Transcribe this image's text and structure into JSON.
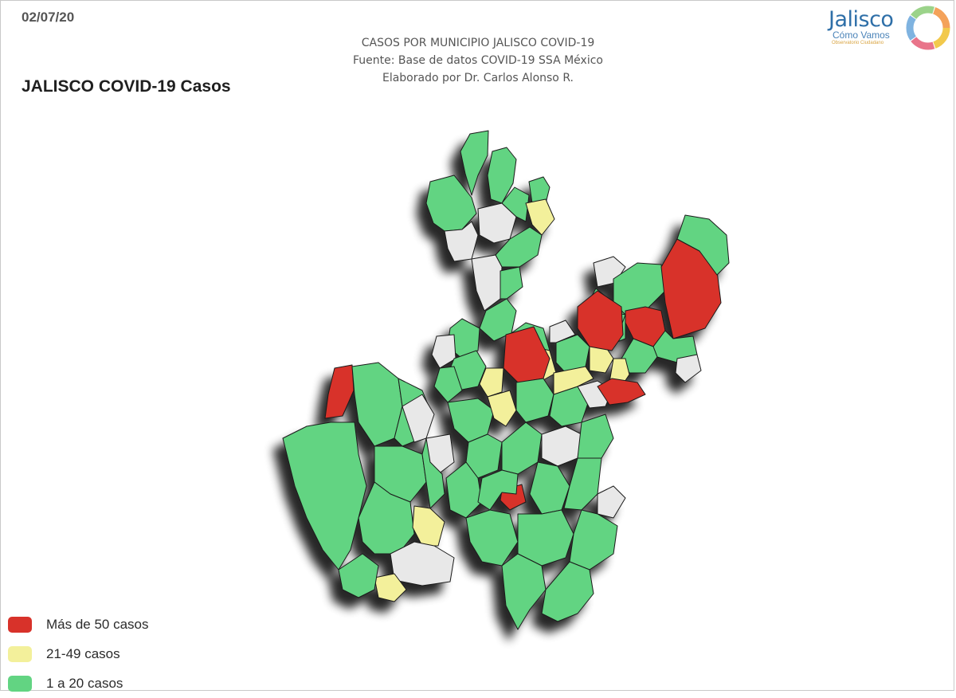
{
  "date": "02/07/20",
  "header": {
    "line1": "CASOS POR MUNICIPIO JALISCO COVID-19",
    "line2": "Fuente: Base de datos COVID-19 SSA México",
    "line3": "Elaborado por Dr. Carlos Alonso R."
  },
  "title": "JALISCO COVID-19 Casos",
  "logo": {
    "name": "Jalisco",
    "subtitle": "Cómo Vamos",
    "tagline": "Observatorio Ciudadano"
  },
  "legend": [
    {
      "label": "Más de 50 casos",
      "color": "#d8322a"
    },
    {
      "label": "21-49 casos",
      "color": "#f3f09b"
    },
    {
      "label": "1 a 20 casos",
      "color": "#62d482"
    }
  ],
  "colors": {
    "high": "#d8322a",
    "mid": "#f3f09b",
    "low": "#62d482",
    "none": "#e8e8e8",
    "border": "#1a1a1a"
  }
}
